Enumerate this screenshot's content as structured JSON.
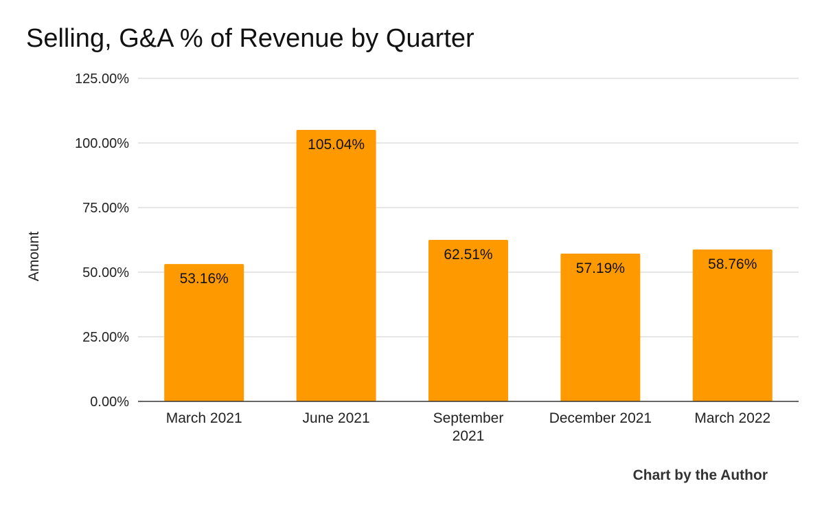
{
  "chart_data": {
    "type": "bar",
    "title": "Selling, G&A % of Revenue by Quarter",
    "xlabel": "",
    "ylabel": "Amount",
    "categories": [
      "March 2021",
      "June 2021",
      "September 2021",
      "December 2021",
      "March 2022"
    ],
    "category_lines": [
      [
        "March 2021"
      ],
      [
        "June 2021"
      ],
      [
        "September",
        "2021"
      ],
      [
        "December 2021"
      ],
      [
        "March 2022"
      ]
    ],
    "values": [
      53.16,
      105.04,
      62.51,
      57.19,
      58.76
    ],
    "data_labels": [
      "53.16%",
      "105.04%",
      "62.51%",
      "57.19%",
      "58.76%"
    ],
    "ylim": [
      0,
      125
    ],
    "yticks": [
      0,
      25,
      50,
      75,
      100,
      125
    ],
    "ytick_labels": [
      "0.00%",
      "25.00%",
      "50.00%",
      "75.00%",
      "100.00%",
      "125.00%"
    ],
    "grid": true,
    "legend": "none",
    "bar_color": "#ff9900"
  },
  "footer": {
    "credit": "Chart by the Author"
  },
  "colors": {
    "bar": "#ff9900",
    "grid": "#cccccc",
    "baseline": "#333333"
  }
}
